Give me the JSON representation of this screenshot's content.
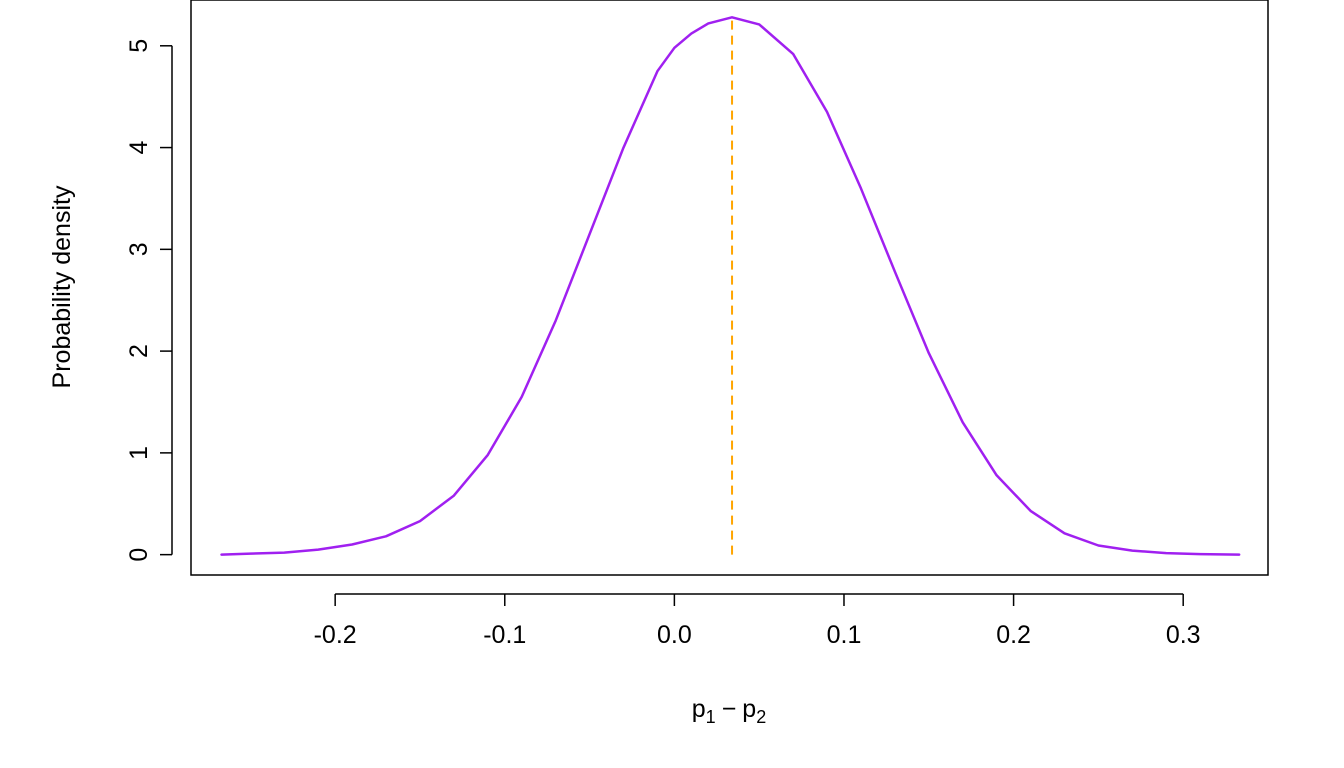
{
  "chart_data": {
    "type": "line",
    "title": "",
    "xlabel": {
      "var1": "p",
      "sub1": "1",
      "op": "−",
      "var2": "p",
      "sub2": "2"
    },
    "ylabel": "Probability density",
    "xlim": [
      -0.285,
      0.35
    ],
    "ylim": [
      -0.2,
      5.45
    ],
    "x_ticks": [
      -0.2,
      -0.1,
      0.0,
      0.1,
      0.2,
      0.3
    ],
    "x_tick_labels": [
      "-0.2",
      "-0.1",
      "0.0",
      "0.1",
      "0.2",
      "0.3"
    ],
    "y_ticks": [
      0,
      1,
      2,
      3,
      4,
      5
    ],
    "y_tick_labels": [
      "0",
      "1",
      "2",
      "3",
      "4",
      "5"
    ],
    "grid": false,
    "series": [
      {
        "line_color": "#a020f0",
        "x": [
          -0.267,
          -0.25,
          -0.23,
          -0.21,
          -0.19,
          -0.17,
          -0.15,
          -0.13,
          -0.11,
          -0.09,
          -0.07,
          -0.05,
          -0.03,
          -0.01,
          0.0,
          0.01,
          0.02,
          0.034,
          0.05,
          0.07,
          0.09,
          0.11,
          0.13,
          0.15,
          0.17,
          0.19,
          0.21,
          0.23,
          0.25,
          0.27,
          0.29,
          0.31,
          0.333
        ],
        "y": [
          0.0,
          0.01,
          0.02,
          0.05,
          0.1,
          0.18,
          0.33,
          0.58,
          0.98,
          1.55,
          2.3,
          3.15,
          4.0,
          4.75,
          4.98,
          5.12,
          5.22,
          5.28,
          5.21,
          4.92,
          4.35,
          3.6,
          2.78,
          1.98,
          1.3,
          0.78,
          0.43,
          0.21,
          0.09,
          0.04,
          0.015,
          0.005,
          0.0
        ]
      }
    ],
    "reference_line": {
      "x": 0.034,
      "y_from": 0,
      "y_to": 5.28,
      "style": "dashed",
      "color": "#ffa500"
    }
  }
}
